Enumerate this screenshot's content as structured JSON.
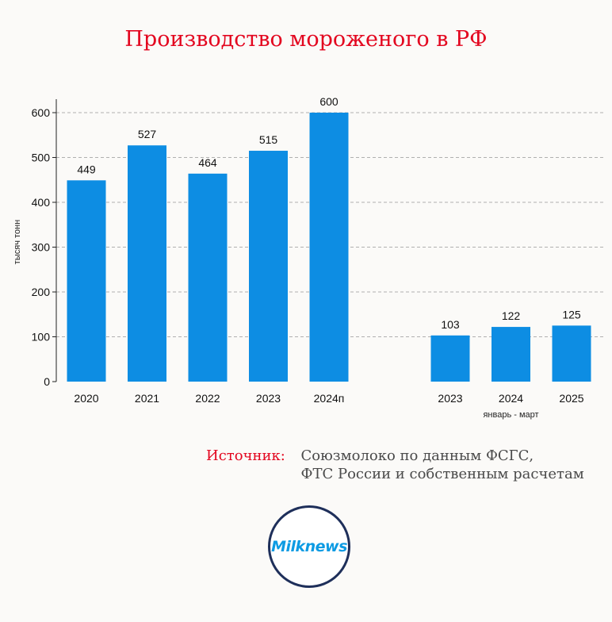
{
  "title": "Производство мороженого в РФ",
  "source": {
    "label": "Источник:",
    "line1": "Союзмолоко по данным ФСГС,",
    "line2": "ФТС России и собственным расчетам"
  },
  "logo": {
    "text": "Milknews"
  },
  "colors": {
    "bar": "#0d8de3",
    "title": "#e3061f",
    "grid": "#b0b0b0"
  },
  "chart_data": {
    "type": "bar",
    "ylabel": "тысяч тонн",
    "ylim": [
      0,
      600
    ],
    "yticks": [
      0,
      100,
      200,
      300,
      400,
      500,
      600
    ],
    "grid": true,
    "groups": [
      {
        "label": "",
        "categories": [
          "2020",
          "2021",
          "2022",
          "2023",
          "2024п"
        ],
        "values": [
          449,
          527,
          464,
          515,
          600
        ]
      },
      {
        "label": "январь - март",
        "categories": [
          "2023",
          "2024",
          "2025"
        ],
        "values": [
          103,
          122,
          125
        ]
      }
    ]
  }
}
